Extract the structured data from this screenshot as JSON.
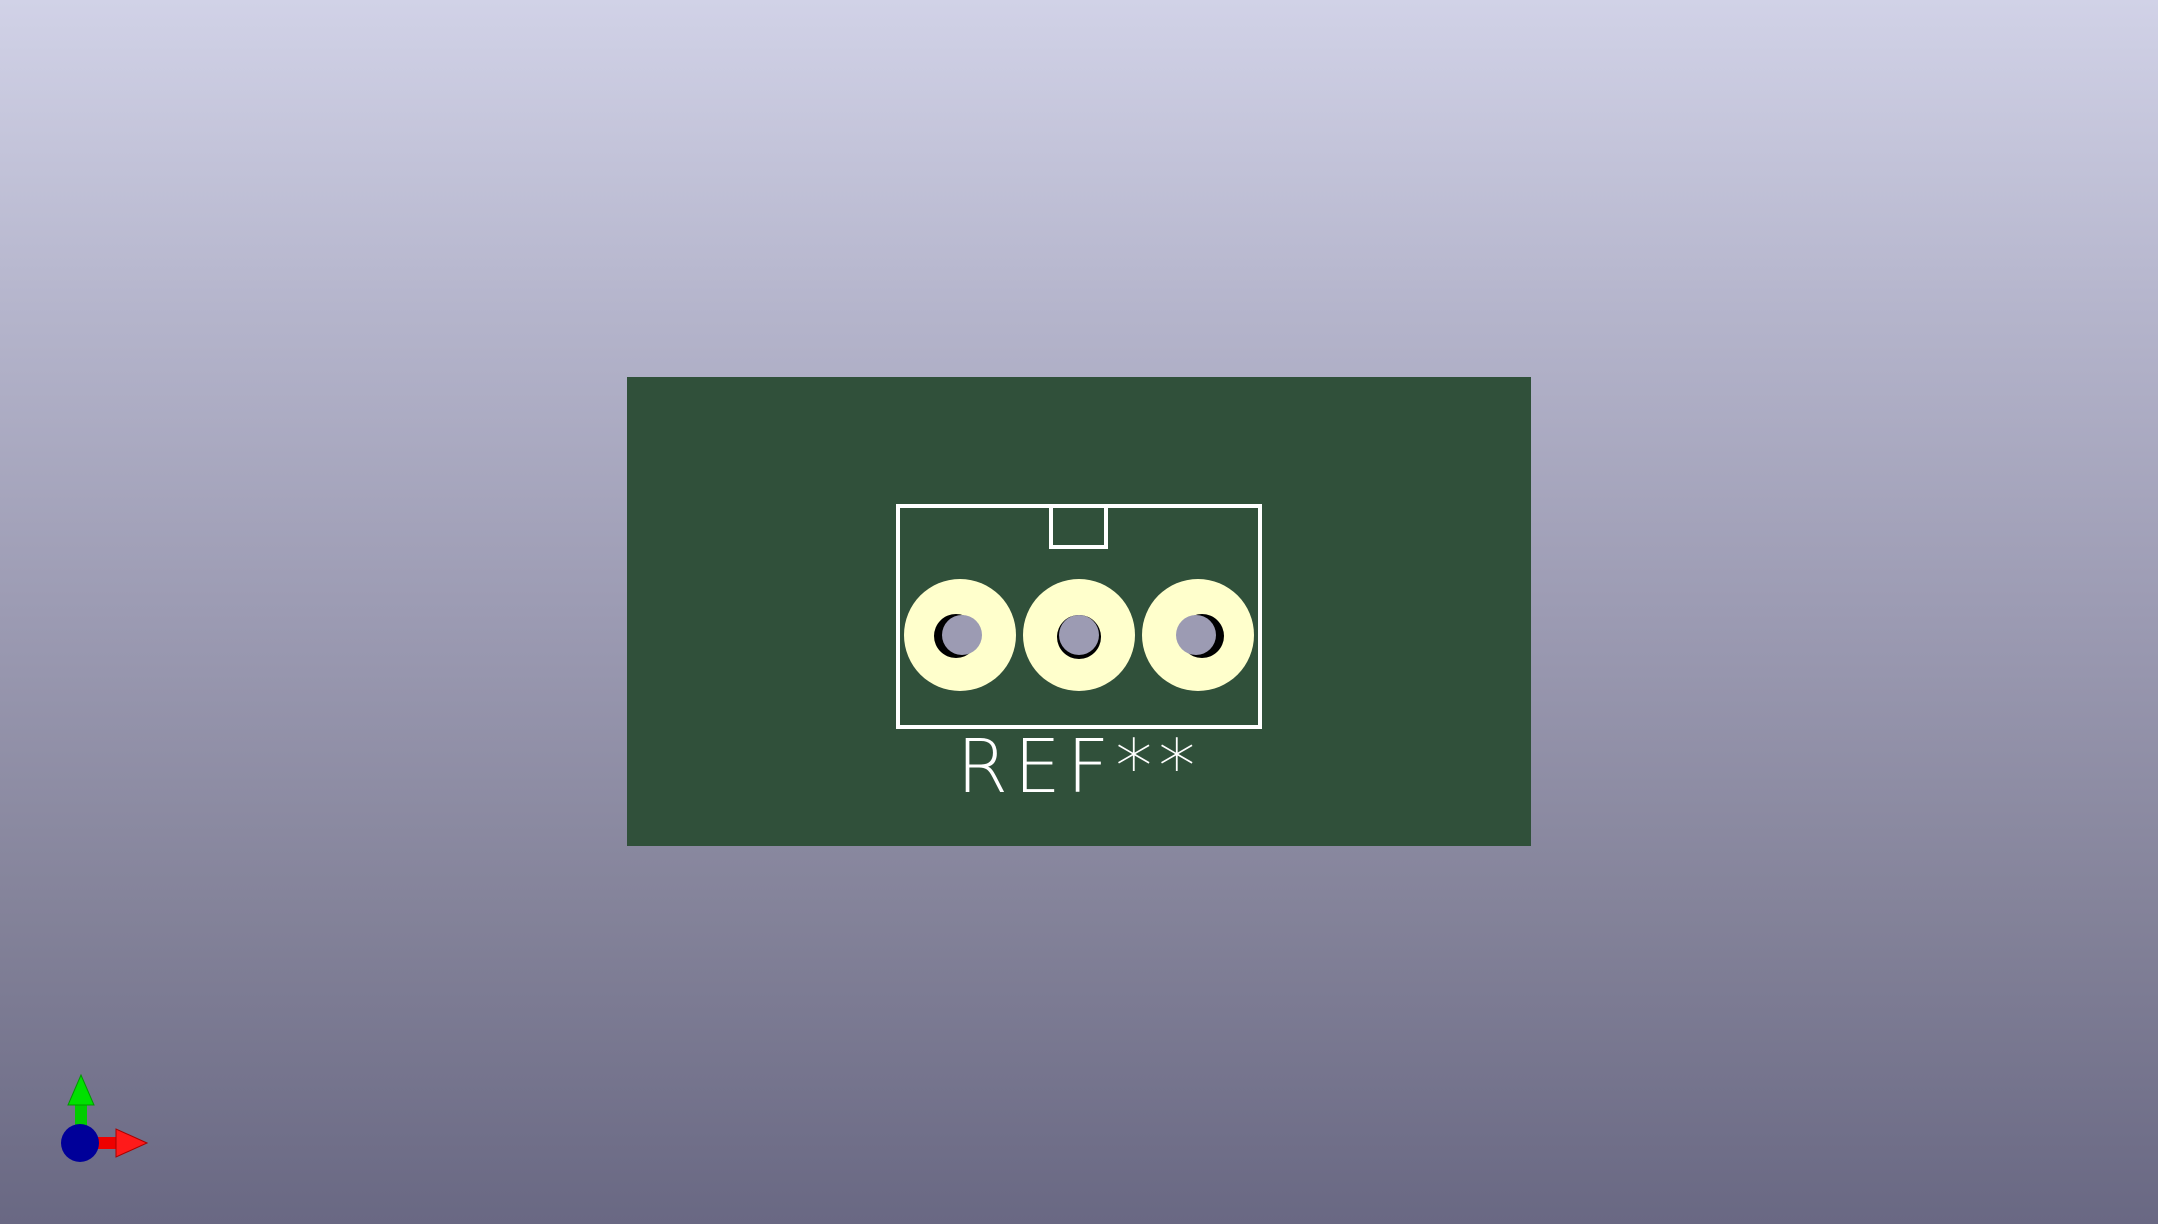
{
  "viewer": {
    "description_free": true,
    "background_top": "#d1d2e7",
    "background_bottom": "#696883"
  },
  "board": {
    "substrate_color": "#30503a",
    "silkscreen_color": "#ffffff",
    "pad_color": "#ffffcc",
    "drill_color": "#9c9bb3"
  },
  "footprint": {
    "reference": "REF**",
    "pad_count": 3
  },
  "axes": {
    "x_color": "#ff0000",
    "y_color": "#00e000",
    "z_color": "#000099"
  }
}
